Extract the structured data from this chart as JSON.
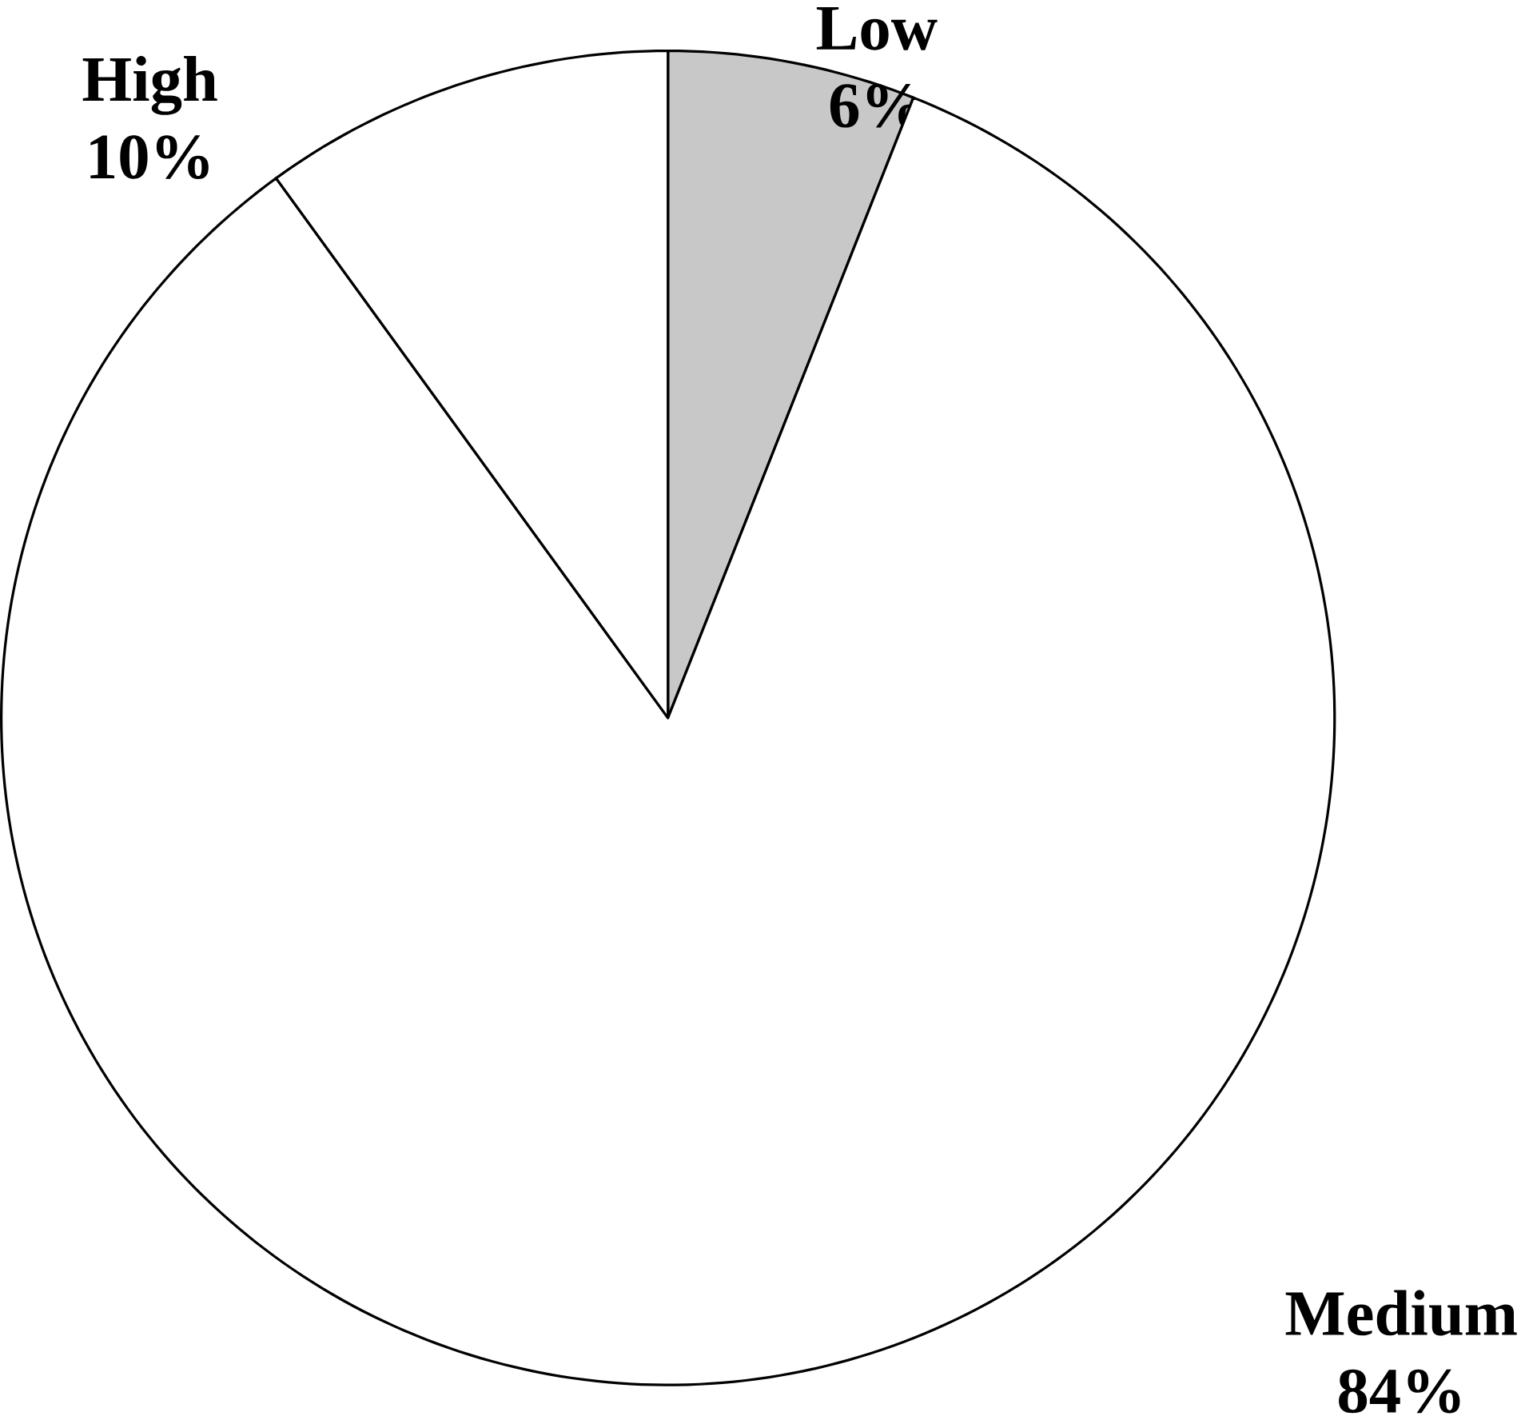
{
  "chart_data": {
    "type": "pie",
    "categories": [
      "Low",
      "Medium",
      "High"
    ],
    "values": [
      6,
      84,
      10
    ],
    "colors": [
      "#c8c8c8",
      "#ffffff",
      "#ffffff"
    ],
    "value_labels": [
      "6%",
      "84%",
      "10%"
    ]
  }
}
